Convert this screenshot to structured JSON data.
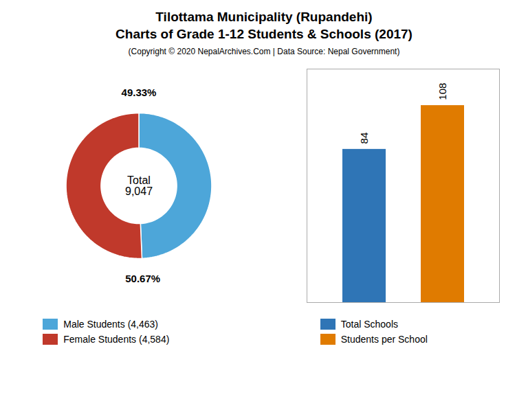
{
  "title": "Tilottama Municipality (Rupandehi)\nCharts of Grade 1-12 Students & Schools (2017)",
  "subtitle": "(Copyright © 2020 NepalArchives.Com | Data Source: Nepal Government)",
  "chart_data": [
    {
      "type": "donut",
      "categories": [
        "Male Students (4,463)",
        "Female Students (4,584)"
      ],
      "values": [
        49.33,
        50.67
      ],
      "value_labels": [
        "49.33%",
        "50.67%"
      ],
      "colors": [
        "#4da6d9",
        "#c0392b"
      ],
      "data_labels": true,
      "annotations": [
        "Total\n9,047"
      ],
      "legend": "bottom"
    },
    {
      "type": "bar",
      "categories": [
        "Total Schools",
        "Students per School"
      ],
      "values": [
        84,
        108
      ],
      "colors": [
        "#2f75b6",
        "#e07b00"
      ],
      "ylim": [
        0,
        128
      ],
      "data_labels": true,
      "tick_labels": false,
      "legend": "bottom"
    }
  ]
}
